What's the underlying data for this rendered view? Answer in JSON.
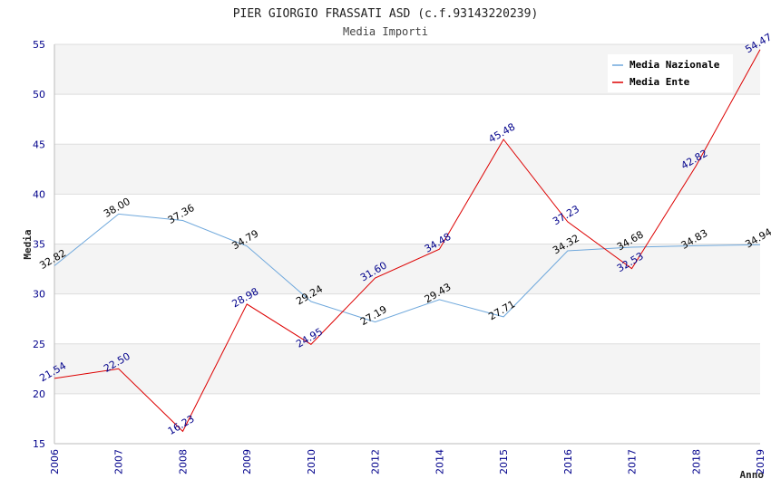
{
  "chart_data": {
    "type": "line",
    "title": "PIER GIORGIO FRASSATI ASD (c.f.93143220239)",
    "subtitle": "Media Importi",
    "ylabel": "Media",
    "xlabel": "Anno",
    "ylim": [
      15,
      55
    ],
    "yticks": [
      15,
      20,
      25,
      30,
      35,
      40,
      45,
      50,
      55
    ],
    "categories": [
      "2006",
      "2007",
      "2008",
      "2009",
      "2010",
      "2012",
      "2014",
      "2015",
      "2016",
      "2017",
      "2018",
      "2019"
    ],
    "grid": true,
    "legend_position": "top-right",
    "series": [
      {
        "name": "Media Nazionale",
        "color": "#6fa8dc",
        "label_color": "#000000",
        "values": [
          32.82,
          38.0,
          37.36,
          34.79,
          29.24,
          27.19,
          29.43,
          27.71,
          34.32,
          34.68,
          34.83,
          34.94
        ],
        "labels": [
          "32.82",
          "38.00",
          "37.36",
          "34.79",
          "29.24",
          "27.19",
          "29.43",
          "27.71",
          "34.32",
          "34.68",
          "34.83",
          "34.94"
        ]
      },
      {
        "name": "Media Ente",
        "color": "#dd0000",
        "label_color": "#00008b",
        "values": [
          21.54,
          22.5,
          16.23,
          28.98,
          24.95,
          31.6,
          34.48,
          45.48,
          37.23,
          32.53,
          42.82,
          54.47
        ],
        "labels": [
          "21.54",
          "22.50",
          "16.23",
          "28.98",
          "24.95",
          "31.60",
          "34.48",
          "45.48",
          "37.23",
          "32.53",
          "42.82",
          "54.47"
        ]
      }
    ]
  }
}
